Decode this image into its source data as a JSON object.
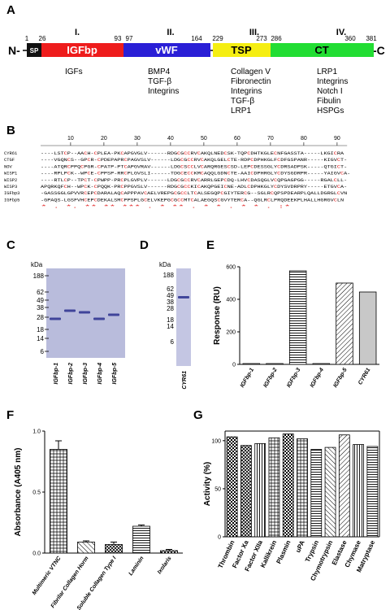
{
  "panels": {
    "A": {
      "letter": "A",
      "n_term": "N-",
      "c_term": "-C",
      "positions": [
        "1",
        "26",
        "93",
        "97",
        "164",
        "229",
        "273",
        "286",
        "360",
        "381"
      ],
      "domains": [
        {
          "roman": "I.",
          "name": "SP",
          "color": "#111111",
          "ligands": []
        },
        {
          "roman": "I.",
          "name": "IGFbp",
          "color": "#ee1c1c",
          "ligands": [
            "IGFs"
          ]
        },
        {
          "roman": "II.",
          "name": "vWF",
          "color": "#2a1fd6",
          "ligands": [
            "BMP4",
            "TGF-β",
            "Integrins"
          ]
        },
        {
          "roman": "III.",
          "name": "TSP",
          "color": "#f5ee12",
          "ligands": [
            "Collagen V",
            "Fibronectin",
            "Integrins",
            "TGF-β",
            "LRP1"
          ]
        },
        {
          "roman": "IV.",
          "name": "CT",
          "color": "#22dd33",
          "ligands": [
            "LRP1",
            "Integrins",
            "Notch I",
            "Fibulin",
            "HSPGs"
          ]
        }
      ]
    },
    "B": {
      "letter": "B",
      "ruler": [
        "10",
        "20",
        "30",
        "40",
        "50",
        "60",
        "70",
        "80",
        "90"
      ],
      "rows": [
        {
          "name": "CYR61",
          "seq": "----LSTCP--AACH-CPLEA-PKCAPGVGLV------RDGCGCCRVCAKQLNEDCSK-TQPCDHTKGLECNFGASSTA-----LKGICRA"
        },
        {
          "name": "CTGF",
          "seq": "----VGQNCS--GPCR-CPDEPAPRCPAGVSLV------LDGCGCCRVCAKQLGELCTE-RDPCDPHKGLFCDFGSPANR-----KIGVCT-"
        },
        {
          "name": "NOV",
          "seq": "----ATQRCPPQCPGR-CPATP-PTCAPGVRAV------LDGCSCCLVCARQRGESCSD-LEPCDESSGLYCDRSADPSK-----QTGICT-"
        },
        {
          "name": "WISP1",
          "seq": "----RPLPCK--WPCE-CPPSP-RRCPLGVSLI------TDGCECCKMCAQQLGDNCTE-AAICDPHRGLYCDYSGDRPR-----YAIGVCA-"
        },
        {
          "name": "WISP2",
          "seq": "----RTLCP--TPCT-CPWPP-PRCPLGVPLV------LDGCGCCRVCARRLGEPCDQ-LHVCDASQGLVCQPGAGPGG-----RGALCLL-"
        },
        {
          "name": "WISP3",
          "seq": "APQRKQFCH--WPCK-CPQQK-PRCPPGVSLV------RDGCGCCKICAKQPGEICNE-ADLCDPHKGLYCDYSVDRPRY-----ETGVCA-"
        },
        {
          "name": "IGFbp3",
          "seq": "-GASSGGLGPVVRCEPCDARALAQCAPPPAVCAELVREPGCGCCLTCALSEGQPCGIYTERCG--SGLRCQPSPDEARPLQALLDGRGLCVN"
        },
        {
          "name": "IGFbp5",
          "seq": "-GPAQS-LGSFVHCEPCDEKALSMCPPSPLGCELVKEPGCGCCMTCALAEGQSCGVYTERCA--QGLRCLPRQDEEKPLHALLHGRGVCLN"
        }
      ],
      "conservation": "  *    . *.     **  ** ***    . *  **   .   *     *  .   *      *      . :*"
    },
    "C": {
      "letter": "C",
      "unit": "kDa",
      "markers": [
        "188",
        "62",
        "49",
        "38",
        "28",
        "18",
        "14",
        "6"
      ],
      "lanes": [
        "IGFbp-1",
        "IGFbp-2",
        "IGFbp-3",
        "IGFbp-4",
        "IGFbp-5"
      ]
    },
    "D": {
      "letter": "D",
      "unit": "kDa",
      "markers": [
        "188",
        "62",
        "49",
        "38",
        "28",
        "18",
        "14",
        "6"
      ],
      "lanes": [
        "CYR61"
      ]
    },
    "E": {
      "letter": "E",
      "chart_data": {
        "type": "bar",
        "categories": [
          "IGFbp-1",
          "IGFbp-2",
          "IGFbp-3",
          "IGFbp-4",
          "IGFbp-5",
          "CYR61"
        ],
        "values": [
          5,
          5,
          575,
          5,
          500,
          445
        ],
        "ylabel": "Response (RU)",
        "ylim": [
          0,
          600
        ],
        "yticks": [
          "0",
          "200",
          "400",
          "600"
        ],
        "grid": false
      }
    },
    "F": {
      "letter": "F",
      "chart_data": {
        "type": "bar",
        "categories": [
          "Multimeric VTNC",
          "Fibrilar Collagen Horm",
          "Soluble Collagen Type I",
          "Laminin",
          "Ixolaris"
        ],
        "values": [
          0.85,
          0.09,
          0.07,
          0.22,
          0.02
        ],
        "errors": [
          0.07,
          0.01,
          0.02,
          0.01,
          0.01
        ],
        "ylabel": "Absorbance (A405 nm)",
        "ylim": [
          0,
          1.0
        ],
        "yticks": [
          "0.0",
          "0.5",
          "1.0"
        ],
        "grid": false
      }
    },
    "G": {
      "letter": "G",
      "chart_data": {
        "type": "bar",
        "categories": [
          "Thrombin",
          "Factor Xa",
          "Factor XIIa",
          "Kallikrein",
          "Plasmin",
          "uPA",
          "Trypsin",
          "Chymotrypsin",
          "Elastase",
          "Chymase",
          "Matryptase"
        ],
        "values": [
          104,
          95,
          97,
          103,
          107,
          102,
          91,
          93,
          106,
          96,
          94
        ],
        "ylabel": "Activity (%)",
        "ylim": [
          0,
          110
        ],
        "yticks": [
          "0",
          "50",
          "100"
        ],
        "grid": false
      }
    }
  }
}
